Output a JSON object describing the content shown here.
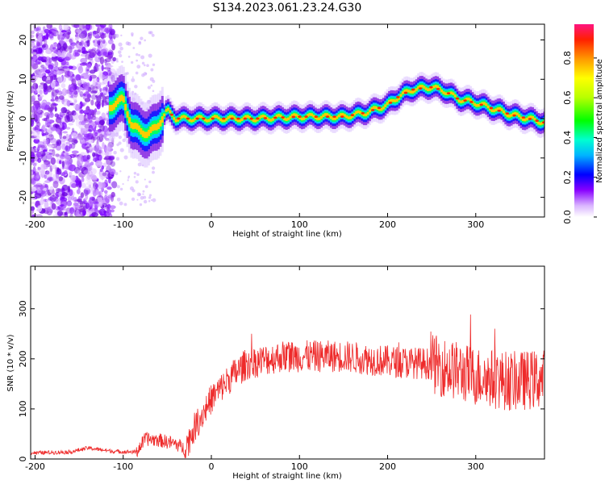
{
  "title": "S134.2023.061.23.24.G30",
  "chart_data": [
    {
      "type": "heatmap",
      "xlabel": "Height of straight line (km)",
      "ylabel": "Frequency (Hz)",
      "xlim": [
        -205,
        378
      ],
      "ylim": [
        -25,
        24
      ],
      "xticks": [
        -200,
        -100,
        0,
        100,
        200,
        300
      ],
      "yticks": [
        -20,
        -10,
        0,
        10,
        20
      ],
      "colorbar": {
        "label": "Normalized spectral amplitude",
        "range": [
          0,
          0.97
        ],
        "ticks": [
          0.0,
          0.2,
          0.4,
          0.6,
          0.8
        ]
      },
      "ridge": {
        "x": [
          -115,
          -100,
          -90,
          -80,
          -72,
          -62,
          -50,
          -40,
          -20,
          0,
          50,
          100,
          150,
          175,
          200,
          215,
          230,
          250,
          265,
          280,
          300,
          320,
          340,
          360,
          378
        ],
        "y": [
          3,
          5,
          -2,
          -3,
          -4,
          -2,
          2,
          0,
          0,
          0,
          0,
          0.5,
          0.5,
          1.5,
          3.5,
          6,
          7.5,
          8,
          7,
          5,
          4,
          2.5,
          1,
          0,
          -1
        ]
      },
      "noise_region_x": [
        -205,
        -110
      ]
    },
    {
      "type": "line",
      "xlabel": "Height of straight line (km)",
      "ylabel": "SNR (10 * v/v)",
      "xlim": [
        -205,
        378
      ],
      "ylim": [
        0,
        385
      ],
      "xticks": [
        -200,
        -100,
        0,
        100,
        200,
        300
      ],
      "yticks": [
        0,
        100,
        200,
        300
      ],
      "color": "#ee2a2a",
      "envelope": {
        "x": [
          -205,
          -160,
          -140,
          -110,
          -85,
          -75,
          -60,
          -40,
          -30,
          -20,
          0,
          20,
          40,
          80,
          150,
          200,
          250,
          300,
          340,
          378
        ],
        "y": [
          12,
          14,
          22,
          15,
          14,
          40,
          38,
          30,
          20,
          60,
          120,
          160,
          190,
          205,
          205,
          195,
          190,
          165,
          155,
          160
        ]
      }
    }
  ]
}
